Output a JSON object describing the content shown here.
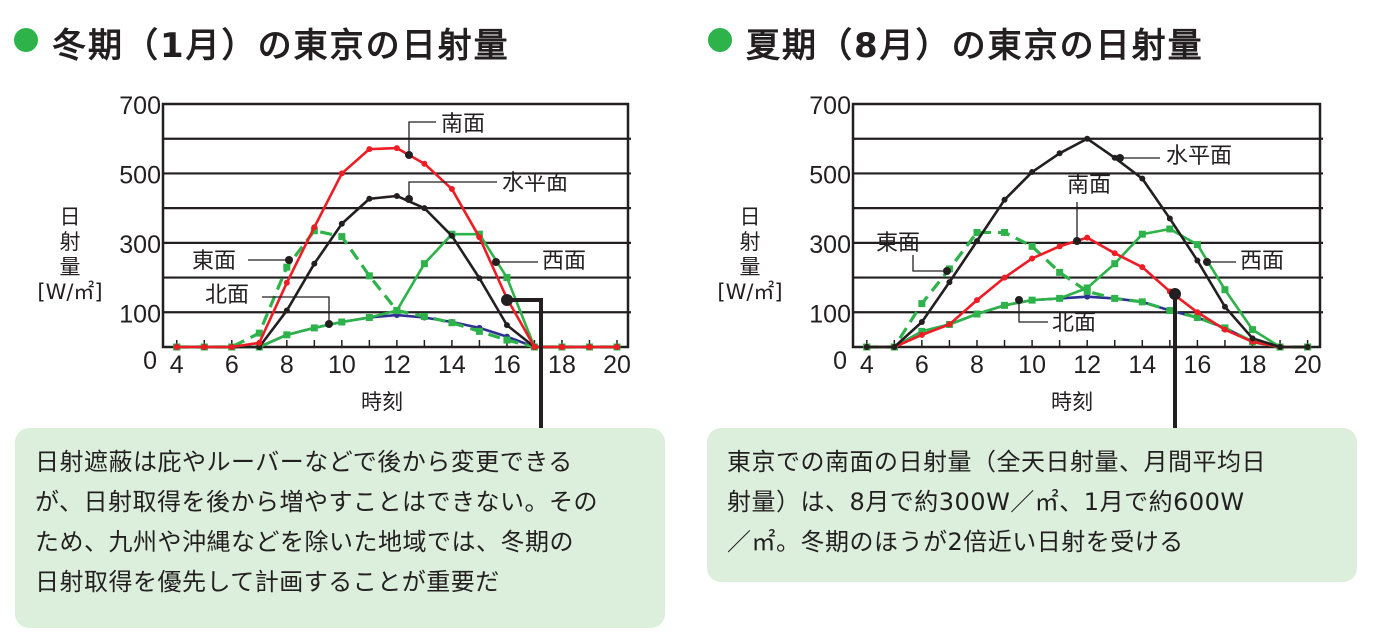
{
  "colors": {
    "south": "#ee1c24",
    "horizontal": "#231f20",
    "east": "#2db34a",
    "west": "#2db34a",
    "north": "#2e3192",
    "bullet": "#2db34a",
    "note_bg": "#dcefdc"
  },
  "panels": [
    {
      "heading": "冬期（1月）の東京の日射量",
      "note_lines": [
        "日射遮蔽は庇やルーバーなどで後から変更できる",
        "が、日射取得を後から増やすことはできない。その",
        "ため、九州や沖縄などを除いた地域では、冬期の",
        "日射取得を優先して計画することが重要だ"
      ]
    },
    {
      "heading": "夏期（8月）の東京の日射量",
      "note_lines": [
        "東京での南面の日射量（全天日射量、月間平均日",
        "射量）は、8月で約300W／㎡、1月で約600W",
        "／㎡。冬期のほうが2倍近い日射を受ける"
      ]
    }
  ],
  "chart_data": [
    {
      "type": "line",
      "title": "冬期（1月）の東京の日射量",
      "xlabel": "時刻",
      "ylabel_lines": [
        "日",
        "射",
        "量",
        "[W/㎡]"
      ],
      "xlim": [
        3.5,
        20.4
      ],
      "ylim": [
        0,
        700
      ],
      "yticks": [
        0,
        100,
        300,
        500,
        700
      ],
      "ytick_labels": [
        "0",
        "100",
        "300",
        "500",
        "700"
      ],
      "xticks": [
        4,
        6,
        8,
        10,
        12,
        14,
        16,
        18,
        20
      ],
      "xtick_labels": [
        "4",
        "6",
        "8",
        "10",
        "12",
        "14",
        "16",
        "18",
        "20"
      ],
      "gridlines": [
        100,
        200,
        300,
        400,
        500,
        600
      ],
      "grid": true,
      "x": [
        4,
        5,
        6,
        7,
        8,
        9,
        10,
        11,
        12,
        13,
        14,
        15,
        16,
        17,
        18,
        19,
        20
      ],
      "series": [
        {
          "name": "北面",
          "key": "north",
          "dash": false,
          "marker": "circle",
          "values": [
            0,
            0,
            0,
            0,
            35,
            55,
            72,
            85,
            92,
            85,
            72,
            55,
            30,
            0,
            0,
            0,
            0
          ]
        },
        {
          "name": "西面",
          "key": "west",
          "dash": false,
          "marker": "square",
          "values": [
            0,
            0,
            0,
            0,
            35,
            55,
            72,
            85,
            105,
            240,
            325,
            325,
            200,
            0,
            0,
            0,
            0
          ]
        },
        {
          "name": "東面",
          "key": "east",
          "dash": true,
          "marker": "square",
          "values": [
            0,
            0,
            0,
            40,
            230,
            335,
            318,
            205,
            105,
            88,
            70,
            45,
            20,
            0,
            0,
            0,
            0
          ]
        },
        {
          "name": "水平面",
          "key": "horizontal",
          "dash": false,
          "marker": "circle",
          "values": [
            0,
            0,
            0,
            0,
            105,
            240,
            355,
            427,
            435,
            400,
            320,
            198,
            63,
            0,
            0,
            0,
            0
          ]
        },
        {
          "name": "南面",
          "key": "south",
          "dash": false,
          "marker": "circle",
          "values": [
            0,
            0,
            0,
            12,
            185,
            345,
            500,
            570,
            573,
            528,
            455,
            316,
            140,
            0,
            0,
            0,
            0
          ]
        }
      ],
      "labels": [
        {
          "text": "南面",
          "series": "south"
        },
        {
          "text": "水平面",
          "series": "horizontal"
        },
        {
          "text": "東面",
          "series": "east"
        },
        {
          "text": "西面",
          "series": "west"
        },
        {
          "text": "北面",
          "series": "north"
        }
      ]
    },
    {
      "type": "line",
      "title": "夏期（8月）の東京の日射量",
      "xlabel": "時刻",
      "ylabel_lines": [
        "日",
        "射",
        "量",
        "[W/㎡]"
      ],
      "xlim": [
        3.5,
        20.45
      ],
      "ylim": [
        0,
        700
      ],
      "yticks": [
        0,
        100,
        300,
        500,
        700
      ],
      "ytick_labels": [
        "0",
        "100",
        "300",
        "500",
        "700"
      ],
      "xticks": [
        4,
        6,
        8,
        10,
        12,
        14,
        16,
        18,
        20
      ],
      "xtick_labels": [
        "4",
        "6",
        "8",
        "10",
        "12",
        "14",
        "16",
        "18",
        "20"
      ],
      "gridlines": [
        100,
        200,
        300,
        400,
        500,
        600
      ],
      "grid": true,
      "x": [
        4,
        5,
        6,
        7,
        8,
        9,
        10,
        11,
        12,
        13,
        14,
        15,
        16,
        17,
        18,
        19,
        20
      ],
      "series": [
        {
          "name": "北面",
          "key": "north",
          "dash": false,
          "marker": "circle",
          "values": [
            0,
            0,
            45,
            65,
            95,
            120,
            135,
            140,
            145,
            140,
            130,
            105,
            85,
            55,
            15,
            0,
            0
          ]
        },
        {
          "name": "西面",
          "key": "west",
          "dash": false,
          "marker": "square",
          "values": [
            0,
            0,
            45,
            65,
            95,
            120,
            135,
            140,
            170,
            240,
            325,
            340,
            295,
            165,
            50,
            0,
            0
          ]
        },
        {
          "name": "東面",
          "key": "east",
          "dash": true,
          "marker": "square",
          "values": [
            0,
            0,
            125,
            225,
            330,
            330,
            290,
            215,
            160,
            140,
            130,
            105,
            85,
            55,
            15,
            0,
            0
          ]
        },
        {
          "name": "南面",
          "key": "south",
          "dash": false,
          "marker": "circle",
          "values": [
            0,
            0,
            35,
            65,
            135,
            200,
            255,
            290,
            315,
            270,
            230,
            160,
            100,
            50,
            15,
            0,
            0
          ]
        },
        {
          "name": "水平面",
          "key": "horizontal",
          "dash": false,
          "marker": "circle",
          "values": [
            0,
            0,
            72,
            187,
            305,
            424,
            504,
            558,
            600,
            545,
            485,
            370,
            249,
            116,
            25,
            0,
            0
          ]
        }
      ],
      "labels": [
        {
          "text": "水平面",
          "series": "horizontal"
        },
        {
          "text": "南面",
          "series": "south"
        },
        {
          "text": "東面",
          "series": "east"
        },
        {
          "text": "西面",
          "series": "west"
        },
        {
          "text": "北面",
          "series": "north"
        }
      ]
    }
  ]
}
